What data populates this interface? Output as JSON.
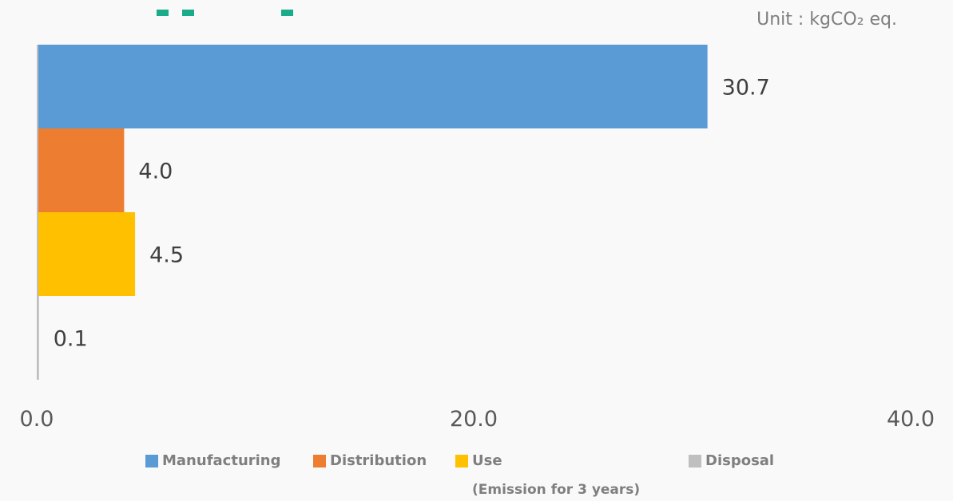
{
  "unit_label": "Unit : kgCO₂ eq.",
  "chart_data": {
    "type": "bar",
    "orientation": "horizontal",
    "title": "",
    "xlabel": "",
    "ylabel": "",
    "xlim": [
      0,
      40
    ],
    "x_ticks": [
      "0.0",
      "20.0",
      "40.0"
    ],
    "x_tick_values": [
      0,
      20,
      40
    ],
    "grid": false,
    "legend_position": "bottom",
    "categories": [
      "Manufacturing",
      "Distribution",
      "Use",
      "Disposal"
    ],
    "values": [
      30.7,
      4.0,
      4.5,
      0.1
    ],
    "data_labels": [
      "30.7",
      "4.0",
      "4.5",
      "0.1"
    ],
    "colors": [
      "#5b9bd5",
      "#ed7d31",
      "#ffc000",
      "#bfbfbf"
    ]
  },
  "legend": [
    {
      "label": "Manufacturing",
      "sub": "",
      "color": "#5b9bd5"
    },
    {
      "label": "Distribution",
      "sub": "",
      "color": "#ed7d31"
    },
    {
      "label": "Use",
      "sub": "(Emission for 3 years)",
      "color": "#ffc000"
    },
    {
      "label": "Disposal",
      "sub": "",
      "color": "#bfbfbf"
    }
  ],
  "accent_color": "#1aab8a"
}
